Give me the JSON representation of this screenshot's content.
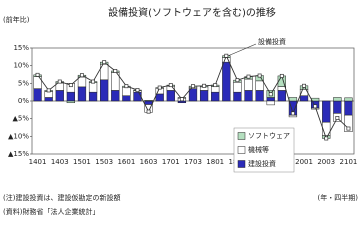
{
  "chart_data": {
    "type": "stacked-bar-line",
    "title": "設備投資(ソフトウェアを含む)の推移",
    "y_label": "(前年比)",
    "x_label": "(年・四半期)",
    "notes": [
      "(注)建設投資は、建設仮勘定の新設額",
      "(資料)財務省「法人企業統計」"
    ],
    "categories": [
      "1401",
      null,
      "1403",
      null,
      "1501",
      null,
      "1503",
      null,
      "1601",
      null,
      "1603",
      null,
      "1701",
      null,
      "1703",
      null,
      "1801",
      null,
      "1803",
      null,
      "1901",
      null,
      "1903",
      null,
      "2001",
      null,
      "2003",
      null,
      "2101"
    ],
    "series": [
      {
        "name": "建設投資",
        "color": "#2b2bb8",
        "values": [
          3.5,
          1.0,
          3.0,
          2.5,
          4.0,
          2.5,
          6.0,
          3.0,
          1.5,
          2.5,
          -1.0,
          2.0,
          3.0,
          -0.5,
          3.5,
          3.0,
          2.5,
          11.0,
          2.5,
          3.0,
          3.0,
          1.0,
          3.0,
          -4.0,
          1.5,
          -2.0,
          -6.0,
          -3.5,
          -4.0
        ]
      },
      {
        "name": "機械等",
        "color": "#ffffff",
        "values": [
          3.4,
          1.7,
          2.1,
          2.5,
          2.8,
          2.7,
          4.4,
          5.1,
          2.4,
          0.4,
          -2.2,
          1.6,
          1.2,
          0.8,
          0.4,
          1.0,
          1.6,
          1.3,
          2.8,
          3.2,
          2.7,
          -1.1,
          1.1,
          -0.5,
          1.8,
          -0.3,
          -3.8,
          -2.3,
          -4.7
        ]
      },
      {
        "name": "ソフトウェア",
        "color": "#b4dfbf",
        "values": [
          0.5,
          0.3,
          0.4,
          -0.5,
          0.5,
          0.3,
          0.6,
          0.4,
          0.3,
          0.2,
          0.2,
          0.2,
          0.3,
          0.2,
          0.3,
          0.3,
          0.4,
          0.5,
          0.6,
          0.7,
          1.5,
          2.0,
          3.0,
          1.0,
          1.0,
          0.8,
          -0.8,
          1.0,
          0.9
        ]
      }
    ],
    "line": {
      "name": "設備投資",
      "color": "#333333",
      "values": [
        7.4,
        3.0,
        5.5,
        4.5,
        7.3,
        5.5,
        11.0,
        8.5,
        4.2,
        3.1,
        -3.0,
        3.8,
        4.5,
        0.5,
        4.2,
        4.3,
        4.5,
        12.8,
        5.9,
        6.9,
        7.2,
        1.9,
        7.1,
        -3.5,
        4.3,
        -1.5,
        -10.6,
        -4.8,
        -7.8
      ]
    },
    "ylim": [
      -15,
      15
    ],
    "yticks": [
      {
        "value": 15,
        "label": "15%"
      },
      {
        "value": 10,
        "label": "10%"
      },
      {
        "value": 5,
        "label": "5%"
      },
      {
        "value": 0,
        "label": "0%"
      },
      {
        "value": -5,
        "label": "▲5%"
      },
      {
        "value": -10,
        "label": "▲10%"
      },
      {
        "value": -15,
        "label": "▲15%"
      }
    ],
    "grid": false
  }
}
